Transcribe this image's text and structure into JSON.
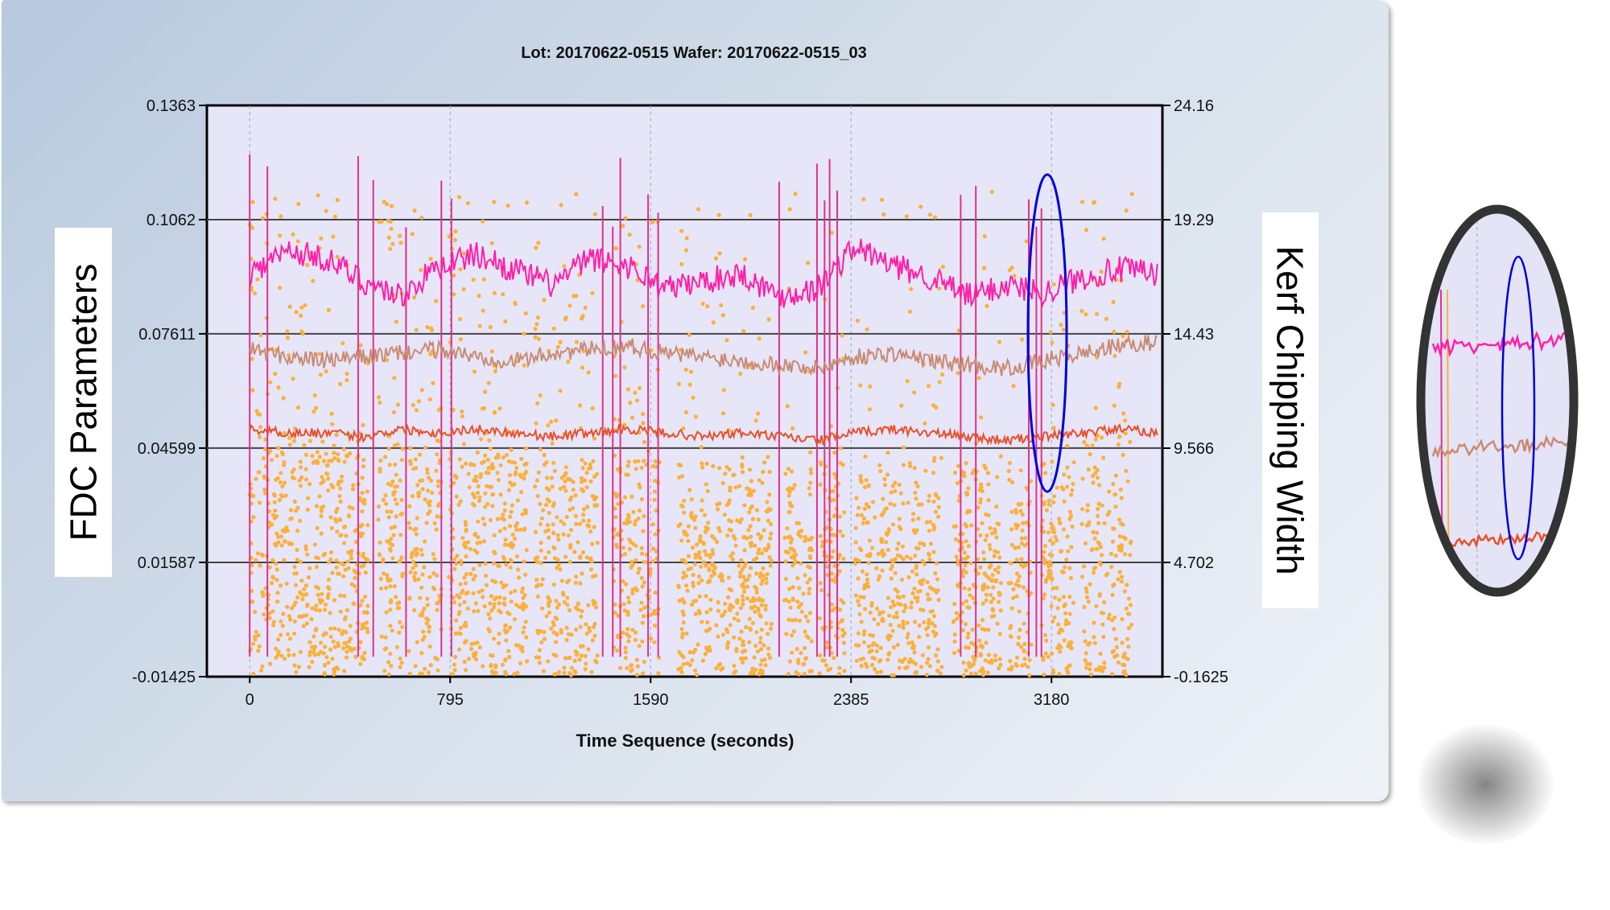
{
  "chart_data": {
    "type": "line",
    "title": "Lot: 20170622-0515 Wafer: 20170622-0515_03",
    "xlabel": "Time Sequence (seconds)",
    "ylabel": "FDC Parameters",
    "y2label": "Kerf Chipping Width",
    "xlim": [
      -170,
      3620
    ],
    "ylim": [
      -0.01425,
      0.1363
    ],
    "y2lim": [
      -0.1625,
      24.16
    ],
    "x_ticks": [
      "0",
      "795",
      "1590",
      "2385",
      "3180"
    ],
    "y_ticks": [
      "0.1363",
      "0.1062",
      "0.07611",
      "0.04599",
      "0.01587",
      "-0.01425"
    ],
    "y2_ticks": [
      "24.16",
      "19.29",
      "14.43",
      "9.566",
      "4.702",
      "-0.1625"
    ],
    "grid": "horizontal major, vertical dashed",
    "x_range_data": [
      0,
      3600
    ],
    "series": [
      {
        "axis": "left",
        "color": "#ff1fa8",
        "style": "line",
        "x": [
          0,
          150,
          300,
          450,
          600,
          750,
          900,
          1050,
          1200,
          1350,
          1500,
          1650,
          1800,
          1950,
          2100,
          2250,
          2400,
          2550,
          2700,
          2850,
          3000,
          3150,
          3300,
          3450,
          3600
        ],
        "values": [
          0.092,
          0.098,
          0.096,
          0.09,
          0.086,
          0.094,
          0.097,
          0.093,
          0.089,
          0.096,
          0.094,
          0.088,
          0.09,
          0.092,
          0.086,
          0.088,
          0.099,
          0.094,
          0.091,
          0.086,
          0.089,
          0.087,
          0.091,
          0.093,
          0.092
        ]
      },
      {
        "axis": "left",
        "color": "#c98a72",
        "style": "line",
        "x": [
          0,
          150,
          300,
          450,
          600,
          750,
          900,
          1050,
          1200,
          1350,
          1500,
          1650,
          1800,
          1950,
          2100,
          2250,
          2400,
          2550,
          2700,
          2850,
          3000,
          3150,
          3300,
          3450,
          3600
        ],
        "values": [
          0.072,
          0.07,
          0.069,
          0.07,
          0.071,
          0.072,
          0.07,
          0.069,
          0.071,
          0.072,
          0.073,
          0.071,
          0.07,
          0.069,
          0.068,
          0.067,
          0.07,
          0.071,
          0.069,
          0.068,
          0.067,
          0.069,
          0.071,
          0.073,
          0.074
        ]
      },
      {
        "axis": "left",
        "color": "#e8502a",
        "style": "line",
        "x": [
          0,
          150,
          300,
          450,
          600,
          750,
          900,
          1050,
          1200,
          1350,
          1500,
          1650,
          1800,
          1950,
          2100,
          2250,
          2400,
          2550,
          2700,
          2850,
          3000,
          3150,
          3300,
          3450,
          3600
        ],
        "values": [
          0.051,
          0.05,
          0.05,
          0.049,
          0.051,
          0.05,
          0.051,
          0.05,
          0.049,
          0.05,
          0.051,
          0.05,
          0.049,
          0.05,
          0.049,
          0.048,
          0.05,
          0.051,
          0.05,
          0.049,
          0.048,
          0.049,
          0.05,
          0.051,
          0.05
        ]
      },
      {
        "axis": "right",
        "color": "#fbb03b",
        "style": "scatter",
        "x_range": [
          0,
          3500
        ],
        "dense_band": [
          -0.1,
          9.0
        ],
        "sparse_range": [
          9.0,
          20.5
        ],
        "gaps": [
          [
            470,
            510
          ],
          [
            610,
            630
          ],
          [
            760,
            790
          ],
          [
            1100,
            1130
          ],
          [
            1380,
            1440
          ],
          [
            1630,
            1700
          ],
          [
            2070,
            2120
          ],
          [
            2230,
            2260
          ],
          [
            2360,
            2400
          ],
          [
            2750,
            2790
          ],
          [
            2980,
            3010
          ],
          [
            3100,
            3140
          ],
          [
            3270,
            3300
          ]
        ]
      }
    ],
    "spikes_x": [
      0,
      70,
      430,
      490,
      620,
      760,
      800,
      1400,
      1440,
      1470,
      1580,
      1620,
      2100,
      2250,
      2280,
      2300,
      2330,
      2820,
      2880,
      3090,
      3120,
      3140
    ]
  }
}
